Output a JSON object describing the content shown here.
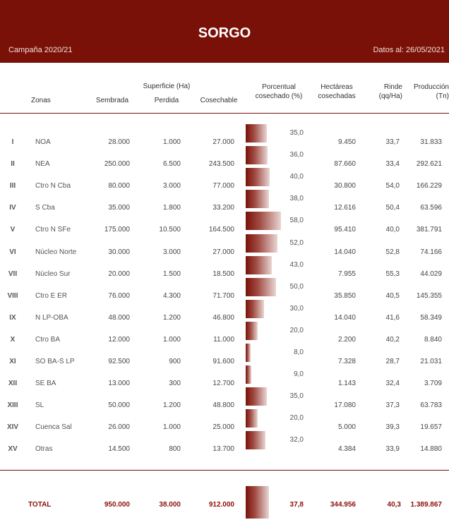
{
  "header": {
    "title": "SORGO",
    "campaign": "Campaña 2020/21",
    "date": "Datos al: 26/05/2021"
  },
  "columns": {
    "zones": "Zonas",
    "surface_group": "Superficie (Ha)",
    "sown": "Sembrada",
    "lost": "Perdida",
    "harvestable": "Cosechable",
    "pct_l1": "Porcentual",
    "pct_l2": "cosechado (%)",
    "ha_l1": "Hectáreas",
    "ha_l2": "cosechadas",
    "yield_l1": "Rinde",
    "yield_l2": "(qq/Ha)",
    "prod_l1": "Producción",
    "prod_l2": "(Tn)"
  },
  "rows": [
    {
      "num": "I",
      "zone": "NOA",
      "sown": "28.000",
      "lost": "1.000",
      "harvestable": "27.000",
      "pct": "35,0",
      "pct_val": 35.0,
      "ha": "9.450",
      "yield": "33,7",
      "prod": "31.833"
    },
    {
      "num": "II",
      "zone": "NEA",
      "sown": "250.000",
      "lost": "6.500",
      "harvestable": "243.500",
      "pct": "36,0",
      "pct_val": 36.0,
      "ha": "87.660",
      "yield": "33,4",
      "prod": "292.621"
    },
    {
      "num": "III",
      "zone": "Ctro N Cba",
      "sown": "80.000",
      "lost": "3.000",
      "harvestable": "77.000",
      "pct": "40,0",
      "pct_val": 40.0,
      "ha": "30.800",
      "yield": "54,0",
      "prod": "166.229"
    },
    {
      "num": "IV",
      "zone": "S Cba",
      "sown": "35.000",
      "lost": "1.800",
      "harvestable": "33.200",
      "pct": "38,0",
      "pct_val": 38.0,
      "ha": "12.616",
      "yield": "50,4",
      "prod": "63.596"
    },
    {
      "num": "V",
      "zone": "Ctro N SFe",
      "sown": "175.000",
      "lost": "10.500",
      "harvestable": "164.500",
      "pct": "58,0",
      "pct_val": 58.0,
      "ha": "95.410",
      "yield": "40,0",
      "prod": "381.791"
    },
    {
      "num": "VI",
      "zone": "Núcleo Norte",
      "sown": "30.000",
      "lost": "3.000",
      "harvestable": "27.000",
      "pct": "52,0",
      "pct_val": 52.0,
      "ha": "14.040",
      "yield": "52,8",
      "prod": "74.166"
    },
    {
      "num": "VII",
      "zone": "Núcleo Sur",
      "sown": "20.000",
      "lost": "1.500",
      "harvestable": "18.500",
      "pct": "43,0",
      "pct_val": 43.0,
      "ha": "7.955",
      "yield": "55,3",
      "prod": "44.029"
    },
    {
      "num": "VIII",
      "zone": "Ctro E ER",
      "sown": "76.000",
      "lost": "4.300",
      "harvestable": "71.700",
      "pct": "50,0",
      "pct_val": 50.0,
      "ha": "35.850",
      "yield": "40,5",
      "prod": "145.355"
    },
    {
      "num": "IX",
      "zone": "N LP-OBA",
      "sown": "48.000",
      "lost": "1.200",
      "harvestable": "46.800",
      "pct": "30,0",
      "pct_val": 30.0,
      "ha": "14.040",
      "yield": "41,6",
      "prod": "58.349"
    },
    {
      "num": "X",
      "zone": "Ctro BA",
      "sown": "12.000",
      "lost": "1.000",
      "harvestable": "11.000",
      "pct": "20,0",
      "pct_val": 20.0,
      "ha": "2.200",
      "yield": "40,2",
      "prod": "8.840"
    },
    {
      "num": "XI",
      "zone": "SO BA-S LP",
      "sown": "92.500",
      "lost": "900",
      "harvestable": "91.600",
      "pct": "8,0",
      "pct_val": 8.0,
      "ha": "7.328",
      "yield": "28,7",
      "prod": "21.031"
    },
    {
      "num": "XII",
      "zone": "SE BA",
      "sown": "13.000",
      "lost": "300",
      "harvestable": "12.700",
      "pct": "9,0",
      "pct_val": 9.0,
      "ha": "1.143",
      "yield": "32,4",
      "prod": "3.709"
    },
    {
      "num": "XIII",
      "zone": "SL",
      "sown": "50.000",
      "lost": "1.200",
      "harvestable": "48.800",
      "pct": "35,0",
      "pct_val": 35.0,
      "ha": "17.080",
      "yield": "37,3",
      "prod": "63.783"
    },
    {
      "num": "XIV",
      "zone": "Cuenca Sal",
      "sown": "26.000",
      "lost": "1.000",
      "harvestable": "25.000",
      "pct": "20,0",
      "pct_val": 20.0,
      "ha": "5.000",
      "yield": "39,3",
      "prod": "19.657"
    },
    {
      "num": "XV",
      "zone": "Otras",
      "sown": "14.500",
      "lost": "800",
      "harvestable": "13.700",
      "pct": "32,0",
      "pct_val": 32.0,
      "ha": "4.384",
      "yield": "33,9",
      "prod": "14.880"
    }
  ],
  "total": {
    "label": "TOTAL",
    "sown": "950.000",
    "lost": "38.000",
    "harvestable": "912.000",
    "pct": "37,8",
    "pct_val": 37.8,
    "ha": "344.956",
    "yield": "40,3",
    "prod": "1.389.867"
  }
}
